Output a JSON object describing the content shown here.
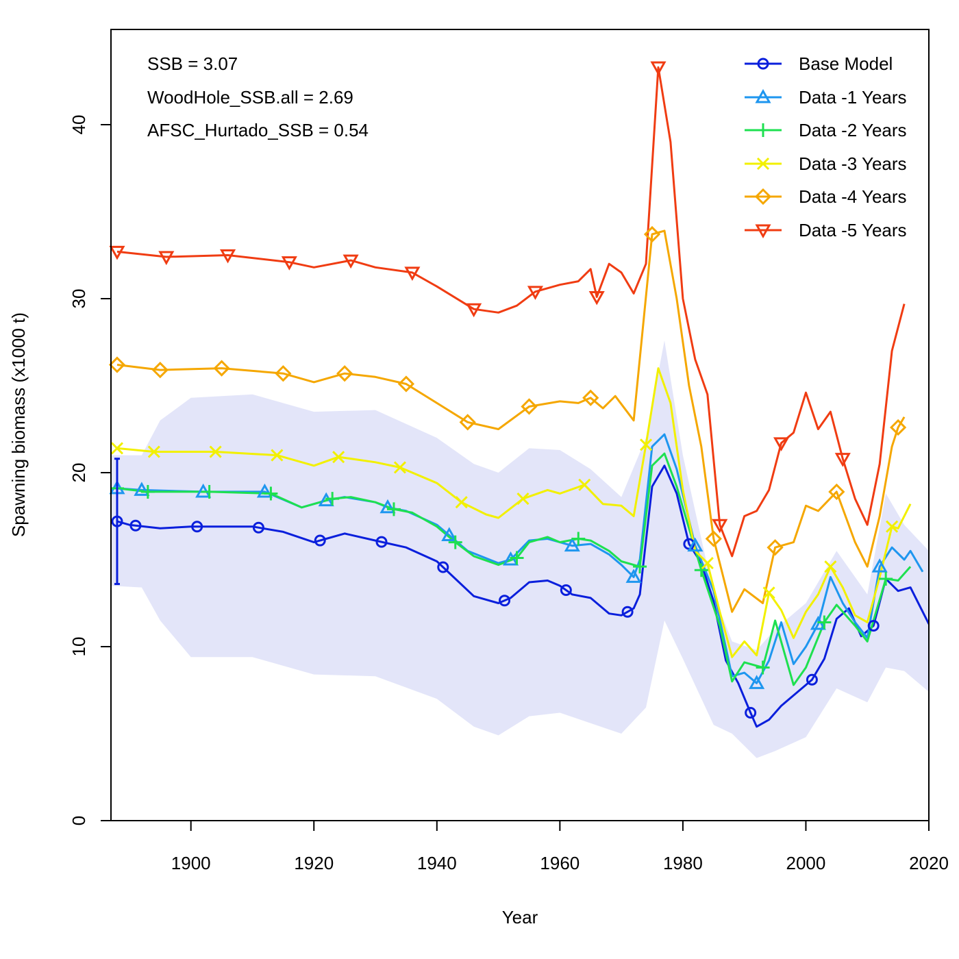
{
  "chart_data": {
    "type": "line",
    "title": "",
    "xlabel": "Year",
    "ylabel": "Spawning biomass (x1000 t)",
    "xlim": [
      1887,
      2020
    ],
    "ylim": [
      0,
      45
    ],
    "x_ticks": [
      1900,
      1920,
      1940,
      1960,
      1980,
      2000,
      2020
    ],
    "y_ticks": [
      0,
      10,
      20,
      30,
      40
    ],
    "annotations": [
      "SSB = 3.07",
      "WoodHole_SSB.all = 2.69",
      "AFSC_Hurtado_SSB = 0.54"
    ],
    "legend_position": "top-right",
    "interval": {
      "color": "#e3e5f9",
      "x": [
        1887,
        1892,
        1895,
        1900,
        1910,
        1920,
        1930,
        1940,
        1946,
        1950,
        1955,
        1960,
        1965,
        1970,
        1974,
        1977,
        1980,
        1985,
        1988,
        1992,
        1995,
        2000,
        2005,
        2010,
        2013,
        2016,
        2020
      ],
      "upper": [
        21.0,
        21.0,
        23.0,
        24.3,
        24.5,
        23.5,
        23.6,
        22.0,
        20.5,
        20.0,
        21.4,
        21.3,
        20.2,
        18.6,
        22.0,
        27.6,
        21.0,
        13.0,
        10.3,
        9.8,
        11.0,
        12.5,
        15.5,
        13.0,
        18.8,
        17.0,
        15.5
      ],
      "lower": [
        13.5,
        13.4,
        11.5,
        9.4,
        9.4,
        8.4,
        8.3,
        7.0,
        5.4,
        4.9,
        6.0,
        6.2,
        5.6,
        5.0,
        6.5,
        11.5,
        9.3,
        5.5,
        5.0,
        3.6,
        4.0,
        4.8,
        7.6,
        6.8,
        8.8,
        8.6,
        7.4
      ]
    },
    "base_error_bar": {
      "x": 1888,
      "low": 13.6,
      "high": 20.8
    },
    "series": [
      {
        "name": "Base Model",
        "color": "#0a1fdc",
        "marker": "circle",
        "x": [
          1888,
          1890,
          1895,
          1900,
          1905,
          1910,
          1915,
          1920,
          1922,
          1925,
          1930,
          1935,
          1940,
          1943,
          1946,
          1950,
          1952,
          1955,
          1958,
          1960,
          1962,
          1965,
          1968,
          1970,
          1972,
          1973,
          1975,
          1977,
          1979,
          1981,
          1983,
          1985,
          1987,
          1989,
          1991,
          1992,
          1994,
          1996,
          1998,
          2000,
          2001,
          2003,
          2005,
          2007,
          2009,
          2011,
          2013,
          2015,
          2017,
          2020
        ],
        "y": [
          17.2,
          17.0,
          16.8,
          16.9,
          16.9,
          16.9,
          16.6,
          16.0,
          16.2,
          16.5,
          16.1,
          15.7,
          14.9,
          13.9,
          12.9,
          12.5,
          12.8,
          13.7,
          13.8,
          13.5,
          13.0,
          12.8,
          11.9,
          11.8,
          12.2,
          13.0,
          19.2,
          20.4,
          18.8,
          15.9,
          14.8,
          12.6,
          9.2,
          7.9,
          6.2,
          5.4,
          5.8,
          6.6,
          7.2,
          7.8,
          8.1,
          9.3,
          11.6,
          12.2,
          10.6,
          11.2,
          13.9,
          13.2,
          13.4,
          11.3
        ],
        "marker_years": [
          1888,
          1891,
          1901,
          1911,
          1921,
          1931,
          1941,
          1951,
          1961,
          1971,
          1981,
          1991,
          2001,
          2011
        ]
      },
      {
        "name": "Data -1 Years",
        "color": "#1e96ef",
        "marker": "triangle",
        "x": [
          1888,
          1892,
          1902,
          1912,
          1918,
          1922,
          1925,
          1930,
          1932,
          1935,
          1940,
          1942,
          1945,
          1950,
          1952,
          1955,
          1958,
          1960,
          1962,
          1965,
          1968,
          1970,
          1972,
          1973,
          1975,
          1977,
          1979,
          1982,
          1985,
          1988,
          1990,
          1992,
          1994,
          1996,
          1998,
          2000,
          2002,
          2004,
          2006,
          2008,
          2010,
          2012,
          2014,
          2016,
          2017,
          2019
        ],
        "y": [
          19.1,
          19.0,
          18.9,
          18.9,
          18.0,
          18.4,
          18.6,
          18.3,
          18.0,
          17.8,
          17.0,
          16.4,
          15.5,
          14.8,
          15.0,
          16.1,
          16.2,
          16.0,
          15.8,
          15.9,
          15.3,
          14.7,
          14.0,
          15.0,
          21.5,
          22.2,
          20.2,
          15.8,
          13.2,
          8.3,
          8.5,
          7.9,
          9.2,
          11.4,
          9.0,
          10.0,
          11.3,
          14.0,
          12.5,
          11.4,
          10.5,
          14.6,
          15.7,
          15.0,
          15.5,
          14.3
        ],
        "marker_years": [
          1888,
          1892,
          1902,
          1912,
          1922,
          1932,
          1942,
          1952,
          1962,
          1972,
          1982,
          1992,
          2002,
          2012
        ]
      },
      {
        "name": "Data -2 Years",
        "color": "#1ee050",
        "marker": "plus",
        "x": [
          1888,
          1893,
          1903,
          1913,
          1918,
          1923,
          1926,
          1930,
          1933,
          1936,
          1940,
          1943,
          1946,
          1950,
          1953,
          1955,
          1958,
          1960,
          1963,
          1965,
          1968,
          1970,
          1973,
          1975,
          1977,
          1979,
          1983,
          1986,
          1988,
          1990,
          1993,
          1995,
          1998,
          2000,
          2003,
          2005,
          2008,
          2010,
          2013,
          2015,
          2017
        ],
        "y": [
          19.1,
          18.9,
          18.9,
          18.8,
          18.0,
          18.5,
          18.6,
          18.3,
          17.9,
          17.7,
          16.9,
          16.0,
          15.2,
          14.7,
          15.1,
          16.0,
          16.3,
          16.0,
          16.2,
          16.1,
          15.5,
          14.9,
          14.6,
          20.4,
          21.1,
          19.2,
          14.4,
          11.2,
          8.0,
          9.1,
          8.8,
          11.5,
          7.8,
          8.8,
          11.4,
          12.4,
          11.2,
          10.3,
          13.9,
          13.8,
          14.6
        ],
        "marker_years": [
          1888,
          1893,
          1903,
          1913,
          1923,
          1933,
          1943,
          1953,
          1963,
          1973,
          1983,
          1993,
          2003,
          2013
        ]
      },
      {
        "name": "Data -3 Years",
        "color": "#f2f000",
        "marker": "x",
        "x": [
          1888,
          1894,
          1904,
          1914,
          1920,
          1924,
          1930,
          1934,
          1940,
          1944,
          1948,
          1950,
          1954,
          1958,
          1960,
          1964,
          1967,
          1970,
          1972,
          1974,
          1976,
          1978,
          1980,
          1982,
          1984,
          1986,
          1988,
          1990,
          1992,
          1994,
          1996,
          1998,
          2000,
          2002,
          2004,
          2006,
          2008,
          2010,
          2012,
          2014,
          2015,
          2017
        ],
        "y": [
          21.4,
          21.2,
          21.2,
          21.0,
          20.4,
          20.9,
          20.6,
          20.3,
          19.4,
          18.3,
          17.6,
          17.4,
          18.5,
          19.0,
          18.8,
          19.3,
          18.2,
          18.1,
          17.5,
          21.6,
          26.0,
          24.0,
          19.0,
          15.5,
          14.8,
          12.0,
          9.4,
          10.3,
          9.5,
          13.1,
          12.1,
          10.5,
          12.0,
          13.0,
          14.6,
          13.4,
          11.8,
          11.4,
          14.0,
          16.9,
          16.8,
          18.2
        ],
        "marker_years": [
          1888,
          1894,
          1904,
          1914,
          1924,
          1934,
          1944,
          1954,
          1964,
          1974,
          1984,
          1994,
          2004,
          2014
        ]
      },
      {
        "name": "Data -4 Years",
        "color": "#f5a700",
        "marker": "diamond",
        "x": [
          1888,
          1895,
          1905,
          1915,
          1920,
          1925,
          1930,
          1935,
          1940,
          1945,
          1950,
          1955,
          1960,
          1963,
          1965,
          1967,
          1969,
          1972,
          1975,
          1977,
          1979,
          1981,
          1983,
          1985,
          1988,
          1990,
          1993,
          1995,
          1998,
          2000,
          2002,
          2005,
          2008,
          2010,
          2012,
          2014,
          2015,
          2016
        ],
        "y": [
          26.2,
          25.9,
          26.0,
          25.7,
          25.2,
          25.7,
          25.5,
          25.1,
          24.0,
          22.9,
          22.5,
          23.8,
          24.1,
          24.0,
          24.3,
          23.7,
          24.4,
          23.0,
          33.7,
          33.9,
          30.0,
          25.0,
          21.5,
          16.2,
          12.0,
          13.3,
          12.5,
          15.7,
          16.0,
          18.1,
          17.8,
          18.9,
          16.0,
          14.6,
          17.5,
          21.5,
          22.6,
          23.2
        ],
        "marker_years": [
          1888,
          1895,
          1905,
          1915,
          1925,
          1935,
          1945,
          1955,
          1965,
          1975,
          1985,
          1995,
          2005,
          2015
        ]
      },
      {
        "name": "Data -5 Years",
        "color": "#f03c12",
        "marker": "triangle-down",
        "x": [
          1888,
          1896,
          1906,
          1916,
          1920,
          1926,
          1930,
          1936,
          1940,
          1946,
          1950,
          1953,
          1956,
          1960,
          1963,
          1965,
          1966,
          1968,
          1970,
          1972,
          1974,
          1976,
          1978,
          1980,
          1982,
          1984,
          1986,
          1988,
          1990,
          1992,
          1994,
          1996,
          1998,
          2000,
          2002,
          2004,
          2006,
          2008,
          2010,
          2012,
          2014,
          2016
        ],
        "y": [
          32.7,
          32.4,
          32.5,
          32.1,
          31.8,
          32.2,
          31.8,
          31.5,
          30.7,
          29.4,
          29.2,
          29.6,
          30.4,
          30.8,
          31.0,
          31.7,
          30.1,
          32.0,
          31.5,
          30.3,
          32.0,
          43.3,
          39.0,
          30.0,
          26.5,
          24.5,
          17.0,
          15.2,
          17.5,
          17.8,
          19.0,
          21.7,
          22.3,
          24.6,
          22.5,
          23.5,
          20.8,
          18.5,
          17.0,
          20.5,
          27.0,
          29.7
        ],
        "marker_years": [
          1888,
          1896,
          1906,
          1916,
          1926,
          1936,
          1946,
          1956,
          1966,
          1976,
          1986,
          1996,
          2006
        ]
      }
    ]
  }
}
